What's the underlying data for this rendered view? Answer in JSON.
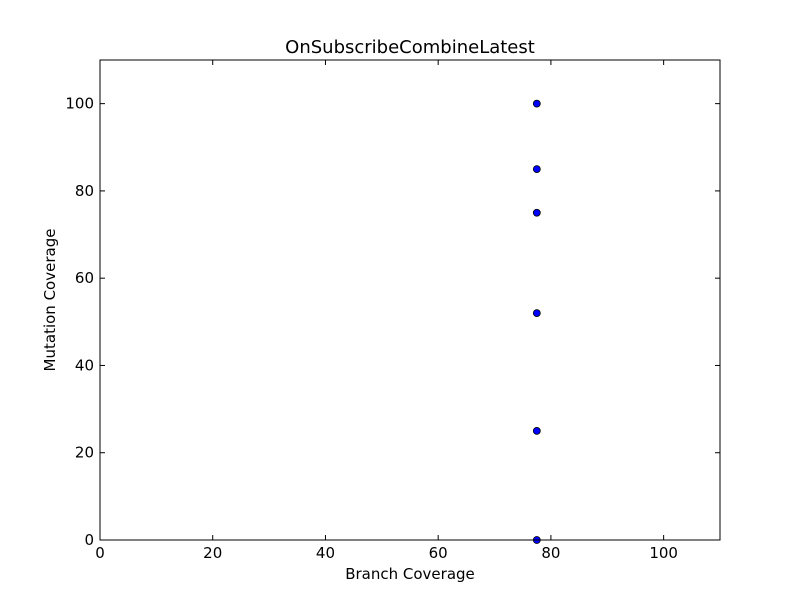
{
  "chart_data": {
    "type": "scatter",
    "title": "OnSubscribeCombineLatest",
    "xlabel": "Branch Coverage",
    "ylabel": "Mutation Coverage",
    "xlim": [
      0,
      110
    ],
    "ylim": [
      0,
      110
    ],
    "xticks": [
      0,
      20,
      40,
      60,
      80,
      100
    ],
    "yticks": [
      0,
      20,
      40,
      60,
      80,
      100
    ],
    "grid": false,
    "marker_color": "#0000ff",
    "points": [
      {
        "x": 77.5,
        "y": 100
      },
      {
        "x": 77.5,
        "y": 85
      },
      {
        "x": 77.5,
        "y": 75
      },
      {
        "x": 77.5,
        "y": 52
      },
      {
        "x": 77.5,
        "y": 25
      },
      {
        "x": 77.5,
        "y": 0
      }
    ]
  }
}
